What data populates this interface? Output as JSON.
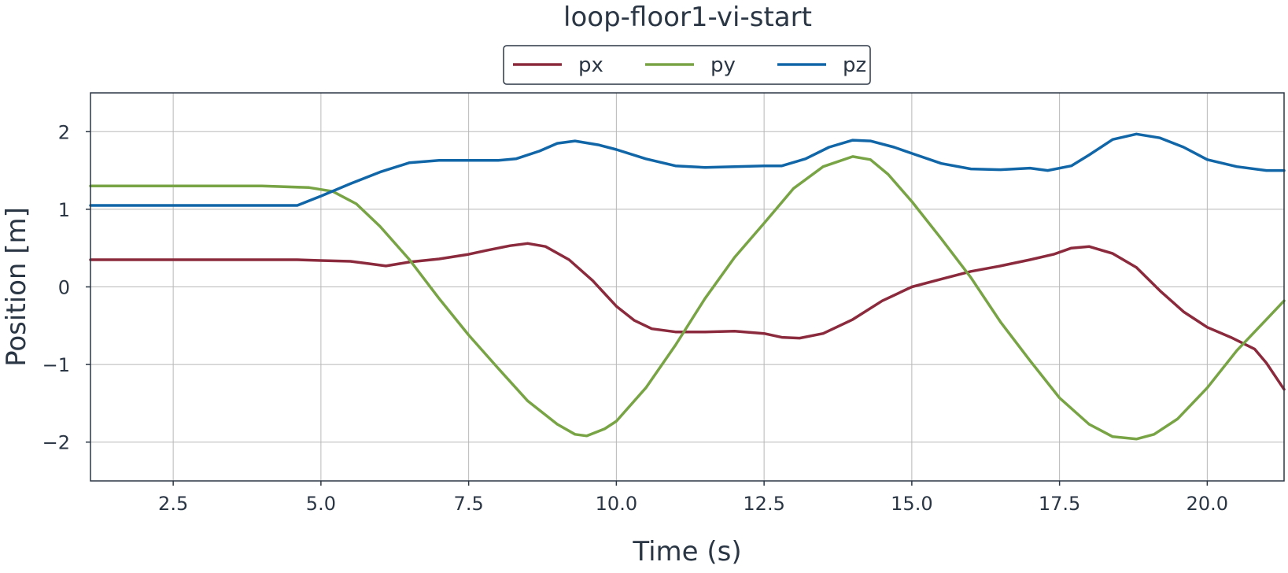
{
  "chart_data": {
    "type": "line",
    "title": "loop-floor1-vi-start",
    "xlabel": "Time (s)",
    "ylabel": "Position [m]",
    "xlim": [
      1.1,
      21.3
    ],
    "ylim": [
      -2.5,
      2.5
    ],
    "x_ticks": [
      2.5,
      5.0,
      7.5,
      10.0,
      12.5,
      15.0,
      17.5,
      20.0
    ],
    "x_tick_labels": [
      "2.5",
      "5.0",
      "7.5",
      "10.0",
      "12.5",
      "15.0",
      "17.5",
      "20.0"
    ],
    "y_ticks": [
      2,
      1,
      0,
      -1,
      -2
    ],
    "y_tick_labels": [
      "2",
      "1",
      "0",
      "−1",
      "−2"
    ],
    "grid": true,
    "legend_position": "top-center",
    "series": [
      {
        "name": "px",
        "color": "#8b2a3c",
        "points": [
          [
            1.1,
            0.35
          ],
          [
            2.5,
            0.35
          ],
          [
            4.0,
            0.35
          ],
          [
            4.6,
            0.35
          ],
          [
            5.0,
            0.34
          ],
          [
            5.5,
            0.33
          ],
          [
            5.8,
            0.3
          ],
          [
            6.1,
            0.27
          ],
          [
            6.5,
            0.32
          ],
          [
            7.0,
            0.36
          ],
          [
            7.5,
            0.42
          ],
          [
            7.8,
            0.47
          ],
          [
            8.2,
            0.53
          ],
          [
            8.5,
            0.56
          ],
          [
            8.8,
            0.52
          ],
          [
            9.2,
            0.35
          ],
          [
            9.6,
            0.08
          ],
          [
            10.0,
            -0.25
          ],
          [
            10.3,
            -0.43
          ],
          [
            10.6,
            -0.54
          ],
          [
            11.0,
            -0.58
          ],
          [
            11.5,
            -0.58
          ],
          [
            12.0,
            -0.57
          ],
          [
            12.5,
            -0.6
          ],
          [
            12.8,
            -0.65
          ],
          [
            13.1,
            -0.66
          ],
          [
            13.5,
            -0.6
          ],
          [
            14.0,
            -0.42
          ],
          [
            14.5,
            -0.18
          ],
          [
            15.0,
            0.0
          ],
          [
            15.5,
            0.1
          ],
          [
            16.0,
            0.2
          ],
          [
            16.5,
            0.27
          ],
          [
            17.0,
            0.35
          ],
          [
            17.4,
            0.42
          ],
          [
            17.7,
            0.5
          ],
          [
            18.0,
            0.52
          ],
          [
            18.4,
            0.43
          ],
          [
            18.8,
            0.25
          ],
          [
            19.2,
            -0.05
          ],
          [
            19.6,
            -0.32
          ],
          [
            20.0,
            -0.52
          ],
          [
            20.4,
            -0.65
          ],
          [
            20.8,
            -0.8
          ],
          [
            21.0,
            -0.98
          ],
          [
            21.3,
            -1.32
          ]
        ]
      },
      {
        "name": "py",
        "color": "#78a445",
        "points": [
          [
            1.1,
            1.3
          ],
          [
            2.5,
            1.3
          ],
          [
            4.0,
            1.3
          ],
          [
            4.8,
            1.28
          ],
          [
            5.2,
            1.23
          ],
          [
            5.6,
            1.07
          ],
          [
            6.0,
            0.78
          ],
          [
            6.5,
            0.35
          ],
          [
            7.0,
            -0.15
          ],
          [
            7.5,
            -0.62
          ],
          [
            8.0,
            -1.05
          ],
          [
            8.5,
            -1.47
          ],
          [
            9.0,
            -1.77
          ],
          [
            9.3,
            -1.9
          ],
          [
            9.5,
            -1.92
          ],
          [
            9.8,
            -1.83
          ],
          [
            10.0,
            -1.73
          ],
          [
            10.5,
            -1.3
          ],
          [
            11.0,
            -0.75
          ],
          [
            11.5,
            -0.15
          ],
          [
            12.0,
            0.38
          ],
          [
            12.5,
            0.82
          ],
          [
            13.0,
            1.27
          ],
          [
            13.5,
            1.55
          ],
          [
            14.0,
            1.68
          ],
          [
            14.3,
            1.64
          ],
          [
            14.6,
            1.45
          ],
          [
            15.0,
            1.1
          ],
          [
            15.5,
            0.62
          ],
          [
            16.0,
            0.12
          ],
          [
            16.5,
            -0.45
          ],
          [
            17.0,
            -0.95
          ],
          [
            17.5,
            -1.43
          ],
          [
            18.0,
            -1.77
          ],
          [
            18.4,
            -1.93
          ],
          [
            18.8,
            -1.96
          ],
          [
            19.1,
            -1.9
          ],
          [
            19.5,
            -1.7
          ],
          [
            20.0,
            -1.3
          ],
          [
            20.5,
            -0.82
          ],
          [
            21.0,
            -0.42
          ],
          [
            21.3,
            -0.18
          ]
        ]
      },
      {
        "name": "pz",
        "color": "#1166a8",
        "points": [
          [
            1.1,
            1.05
          ],
          [
            2.5,
            1.05
          ],
          [
            4.0,
            1.05
          ],
          [
            4.6,
            1.05
          ],
          [
            5.0,
            1.17
          ],
          [
            5.5,
            1.33
          ],
          [
            6.0,
            1.48
          ],
          [
            6.5,
            1.6
          ],
          [
            7.0,
            1.63
          ],
          [
            7.5,
            1.63
          ],
          [
            8.0,
            1.63
          ],
          [
            8.3,
            1.65
          ],
          [
            8.7,
            1.75
          ],
          [
            9.0,
            1.85
          ],
          [
            9.3,
            1.88
          ],
          [
            9.7,
            1.83
          ],
          [
            10.0,
            1.77
          ],
          [
            10.5,
            1.65
          ],
          [
            11.0,
            1.56
          ],
          [
            11.5,
            1.54
          ],
          [
            12.0,
            1.55
          ],
          [
            12.5,
            1.56
          ],
          [
            12.8,
            1.56
          ],
          [
            13.2,
            1.65
          ],
          [
            13.6,
            1.8
          ],
          [
            14.0,
            1.89
          ],
          [
            14.3,
            1.88
          ],
          [
            14.7,
            1.8
          ],
          [
            15.0,
            1.72
          ],
          [
            15.5,
            1.59
          ],
          [
            16.0,
            1.52
          ],
          [
            16.5,
            1.51
          ],
          [
            17.0,
            1.53
          ],
          [
            17.3,
            1.5
          ],
          [
            17.7,
            1.56
          ],
          [
            18.0,
            1.7
          ],
          [
            18.4,
            1.9
          ],
          [
            18.8,
            1.97
          ],
          [
            19.2,
            1.92
          ],
          [
            19.6,
            1.8
          ],
          [
            20.0,
            1.64
          ],
          [
            20.5,
            1.55
          ],
          [
            21.0,
            1.5
          ],
          [
            21.3,
            1.5
          ]
        ]
      }
    ]
  }
}
